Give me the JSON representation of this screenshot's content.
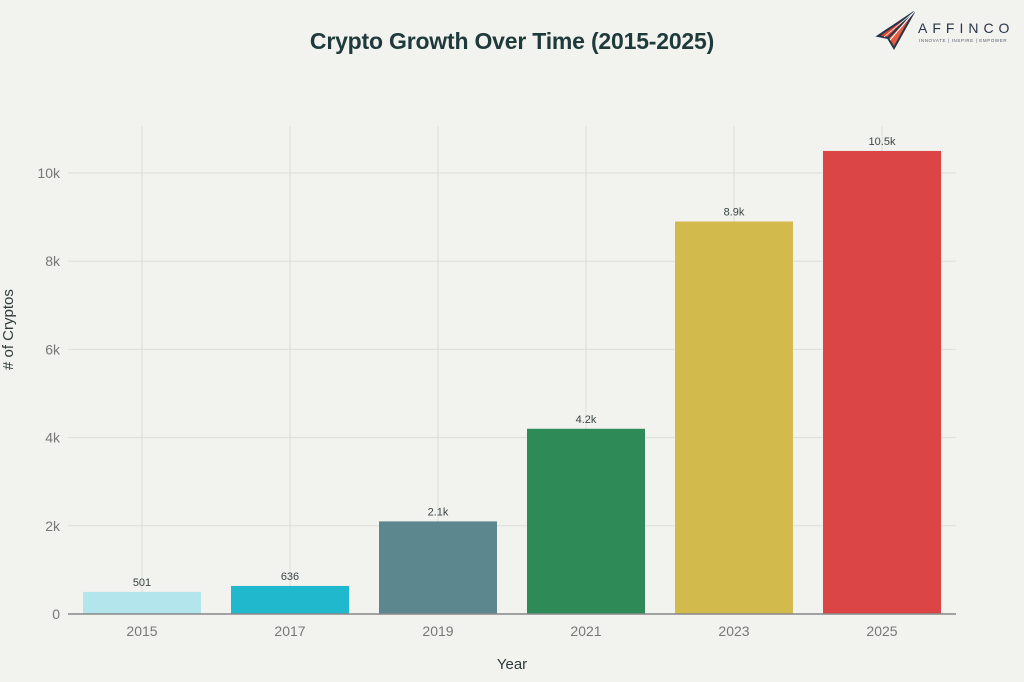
{
  "header": {
    "title": "Crypto Growth Over Time (2015-2025)"
  },
  "logo": {
    "name": "AFFINCO",
    "tagline": "INNOVATE | INSPIRE | EMPOWER",
    "icon": "paper-plane-icon"
  },
  "chart_data": {
    "type": "bar",
    "title": "Crypto Growth Over Time (2015-2025)",
    "xlabel": "Year",
    "ylabel": "# of Cryptos",
    "categories": [
      "2015",
      "2017",
      "2019",
      "2021",
      "2023",
      "2025"
    ],
    "values": [
      501,
      636,
      2100,
      4200,
      8900,
      10500
    ],
    "data_labels": [
      "501",
      "636",
      "2.1k",
      "4.2k",
      "8.9k",
      "10.5k"
    ],
    "colors": [
      "#b3e5ec",
      "#1fb8cd",
      "#5d878f",
      "#2e8b57",
      "#d2ba4c",
      "#db4545"
    ],
    "yticks": [
      0,
      2000,
      4000,
      6000,
      8000,
      10000
    ],
    "ytick_labels": [
      "0",
      "2k",
      "4k",
      "6k",
      "8k",
      "10k"
    ],
    "ylim": [
      0,
      11000
    ],
    "grid": true,
    "legend": null
  }
}
